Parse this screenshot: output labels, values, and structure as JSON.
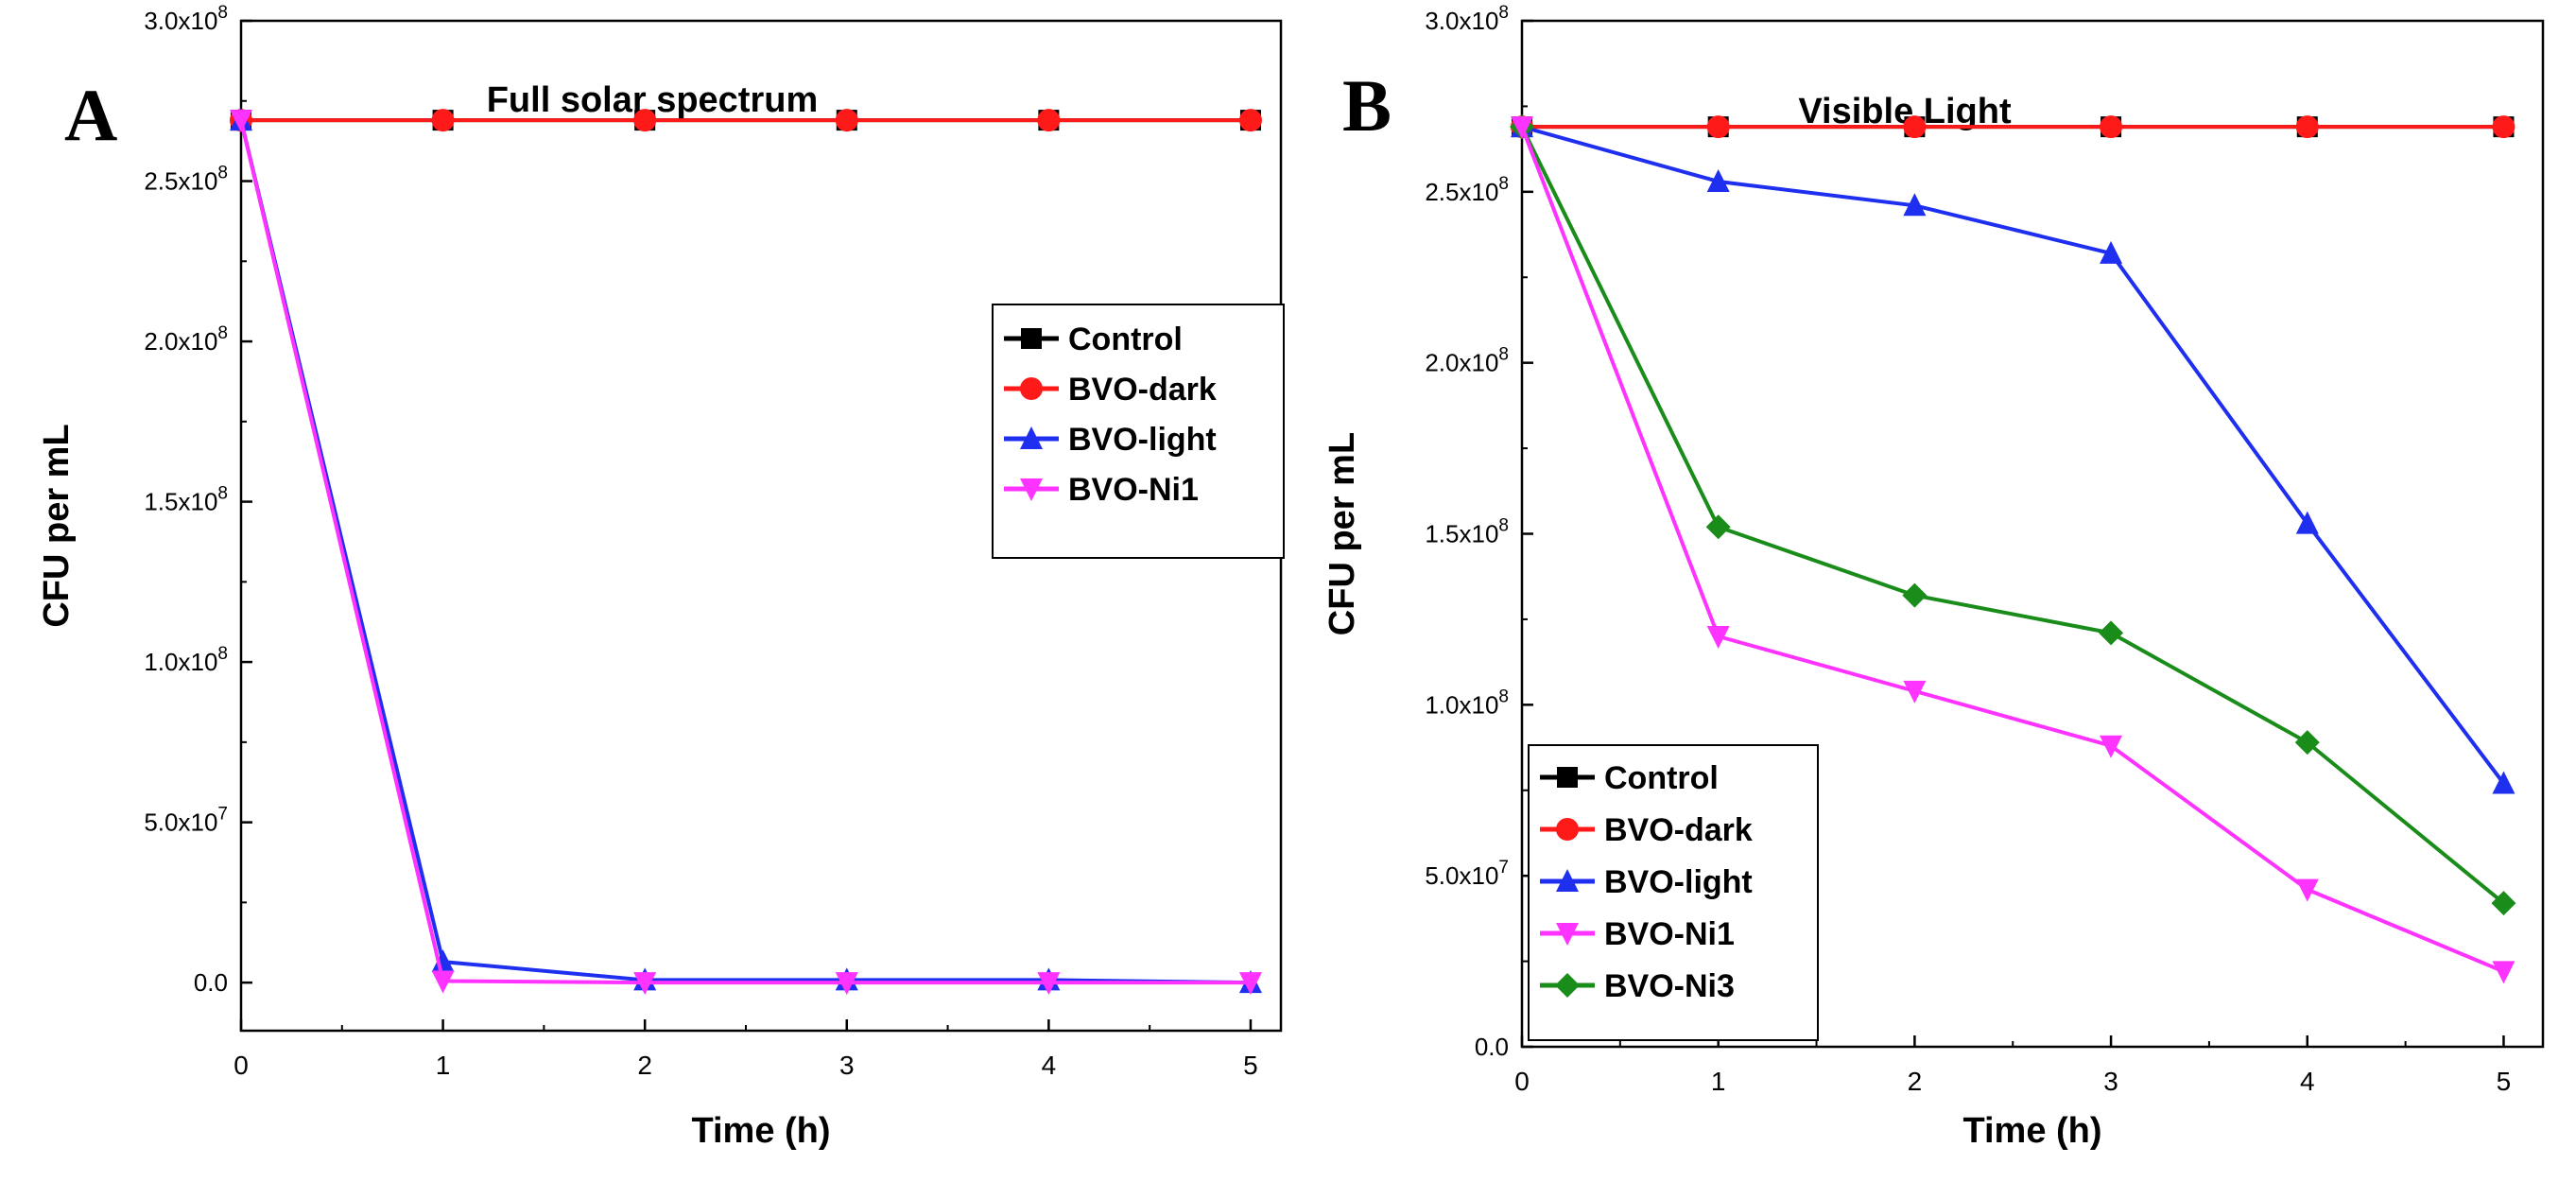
{
  "colors": {
    "Control": "#000000",
    "BVO-dark": "#ff1a1a",
    "BVO-light": "#1f2ff0",
    "BVO-Ni1": "#ff33ff",
    "BVO-Ni3": "#1a8c1a"
  },
  "chart_data": [
    {
      "panel": "A",
      "type": "line",
      "title": "Full solar spectrum",
      "xlabel": "Time (h)",
      "ylabel": "CFU per mL",
      "xlim": [
        0,
        5.15
      ],
      "ylim": [
        -15000000.0,
        300000000.0
      ],
      "x_ticks": [
        "0",
        "1",
        "2",
        "3",
        "4",
        "5"
      ],
      "y_ticks": [
        {
          "value": 0,
          "base": "0.0",
          "exp": ""
        },
        {
          "value": 50000000.0,
          "base": "5.0x10",
          "exp": "7"
        },
        {
          "value": 100000000.0,
          "base": "1.0x10",
          "exp": "8"
        },
        {
          "value": 150000000.0,
          "base": "1.5x10",
          "exp": "8"
        },
        {
          "value": 200000000.0,
          "base": "2.0x10",
          "exp": "8"
        },
        {
          "value": 250000000.0,
          "base": "2.5x10",
          "exp": "8"
        },
        {
          "value": 300000000.0,
          "base": "3.0x10",
          "exp": "8"
        }
      ],
      "legend_position": "center-right",
      "legend": [
        "Control",
        "BVO-dark",
        "BVO-light",
        "BVO-Ni1"
      ],
      "x": [
        0,
        1,
        2,
        3,
        4,
        5
      ],
      "series": [
        {
          "name": "Control",
          "marker": "square",
          "values": [
            269000000.0,
            269000000.0,
            269000000.0,
            269000000.0,
            269000000.0,
            269000000.0
          ]
        },
        {
          "name": "BVO-dark",
          "marker": "circle",
          "values": [
            269000000.0,
            269000000.0,
            269000000.0,
            269000000.0,
            269000000.0,
            269000000.0
          ]
        },
        {
          "name": "BVO-light",
          "marker": "triangle-up",
          "values": [
            269000000.0,
            6500000.0,
            800000.0,
            800000.0,
            800000.0,
            0
          ]
        },
        {
          "name": "BVO-Ni1",
          "marker": "triangle-down",
          "values": [
            269000000.0,
            500000.0,
            0,
            0,
            0,
            0
          ]
        }
      ]
    },
    {
      "panel": "B",
      "type": "line",
      "title": "Visible Light",
      "xlabel": "Time (h)",
      "ylabel": "CFU per mL",
      "xlim": [
        0,
        5.2
      ],
      "ylim": [
        0,
        300000000.0
      ],
      "x_ticks": [
        "0",
        "1",
        "2",
        "3",
        "4",
        "5"
      ],
      "y_ticks": [
        {
          "value": 0,
          "base": "0.0",
          "exp": ""
        },
        {
          "value": 50000000.0,
          "base": "5.0x10",
          "exp": "7"
        },
        {
          "value": 100000000.0,
          "base": "1.0x10",
          "exp": "8"
        },
        {
          "value": 150000000.0,
          "base": "1.5x10",
          "exp": "8"
        },
        {
          "value": 200000000.0,
          "base": "2.0x10",
          "exp": "8"
        },
        {
          "value": 250000000.0,
          "base": "2.5x10",
          "exp": "8"
        },
        {
          "value": 300000000.0,
          "base": "3.0x10",
          "exp": "8"
        }
      ],
      "legend_position": "bottom-left",
      "legend": [
        "Control",
        "BVO-dark",
        "BVO-light",
        "BVO-Ni1",
        "BVO-Ni3"
      ],
      "x": [
        0,
        1,
        2,
        3,
        4,
        5
      ],
      "series": [
        {
          "name": "Control",
          "marker": "square",
          "values": [
            269000000.0,
            269000000.0,
            269000000.0,
            269000000.0,
            269000000.0,
            269000000.0
          ]
        },
        {
          "name": "BVO-dark",
          "marker": "circle",
          "values": [
            269000000.0,
            269000000.0,
            269000000.0,
            269000000.0,
            269000000.0,
            269000000.0
          ]
        },
        {
          "name": "BVO-light",
          "marker": "triangle-up",
          "values": [
            269000000.0,
            253000000.0,
            246000000.0,
            232000000.0,
            153000000.0,
            77000000.0
          ]
        },
        {
          "name": "BVO-Ni3",
          "marker": "diamond",
          "values": [
            269000000.0,
            152000000.0,
            132000000.0,
            121000000.0,
            89000000.0,
            42000000.0
          ]
        },
        {
          "name": "BVO-Ni1",
          "marker": "triangle-down",
          "values": [
            269000000.0,
            120000000.0,
            104000000.0,
            88000000.0,
            46000000.0,
            22000000.0
          ]
        }
      ]
    }
  ]
}
